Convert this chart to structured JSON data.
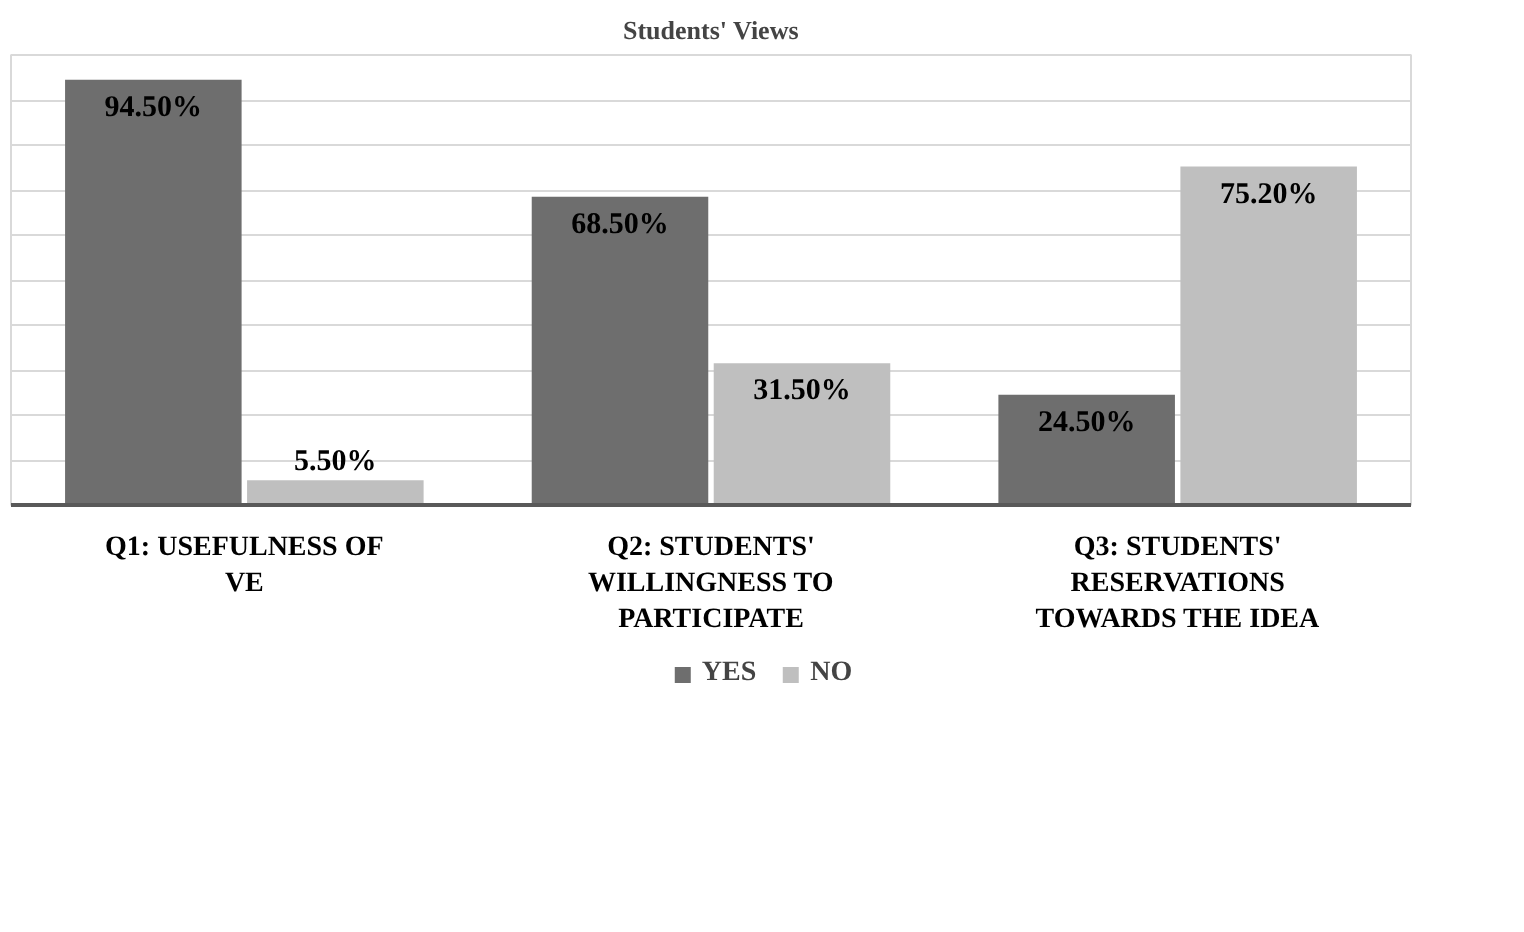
{
  "chart_data": {
    "type": "bar",
    "title": "Students' Views",
    "categories": [
      "Q1: USEFULNESS OF VE",
      "Q2: STUDENTS' WILLINGNESS TO PARTICIPATE",
      "Q3: STUDENTS' RESERVATIONS TOWARDS THE IDEA"
    ],
    "series": [
      {
        "name": "YES",
        "color": "#6e6e6e",
        "values": [
          94.5,
          68.5,
          24.5
        ],
        "value_labels": [
          "94.50%",
          "68.50%",
          "24.50%"
        ]
      },
      {
        "name": "NO",
        "color": "#bfbfbf",
        "values": [
          5.5,
          31.5,
          75.2
        ],
        "value_labels": [
          "5.50%",
          "31.50%",
          "75.20%"
        ]
      }
    ],
    "ylim": [
      0,
      100
    ],
    "yticks": [
      {
        "value": 0,
        "label": null
      },
      {
        "value": 10,
        "label": null
      },
      {
        "value": 20,
        "label": null
      },
      {
        "value": 30,
        "label": null
      },
      {
        "value": 40,
        "label": null
      },
      {
        "value": 50,
        "label": null
      },
      {
        "value": 60,
        "label": null
      },
      {
        "value": 70,
        "label": null
      },
      {
        "value": 80,
        "label": null
      },
      {
        "value": 90,
        "label": null
      },
      {
        "value": 100,
        "label": null
      }
    ],
    "tick_labels": "x",
    "grid": "y",
    "legend": "bottom"
  }
}
